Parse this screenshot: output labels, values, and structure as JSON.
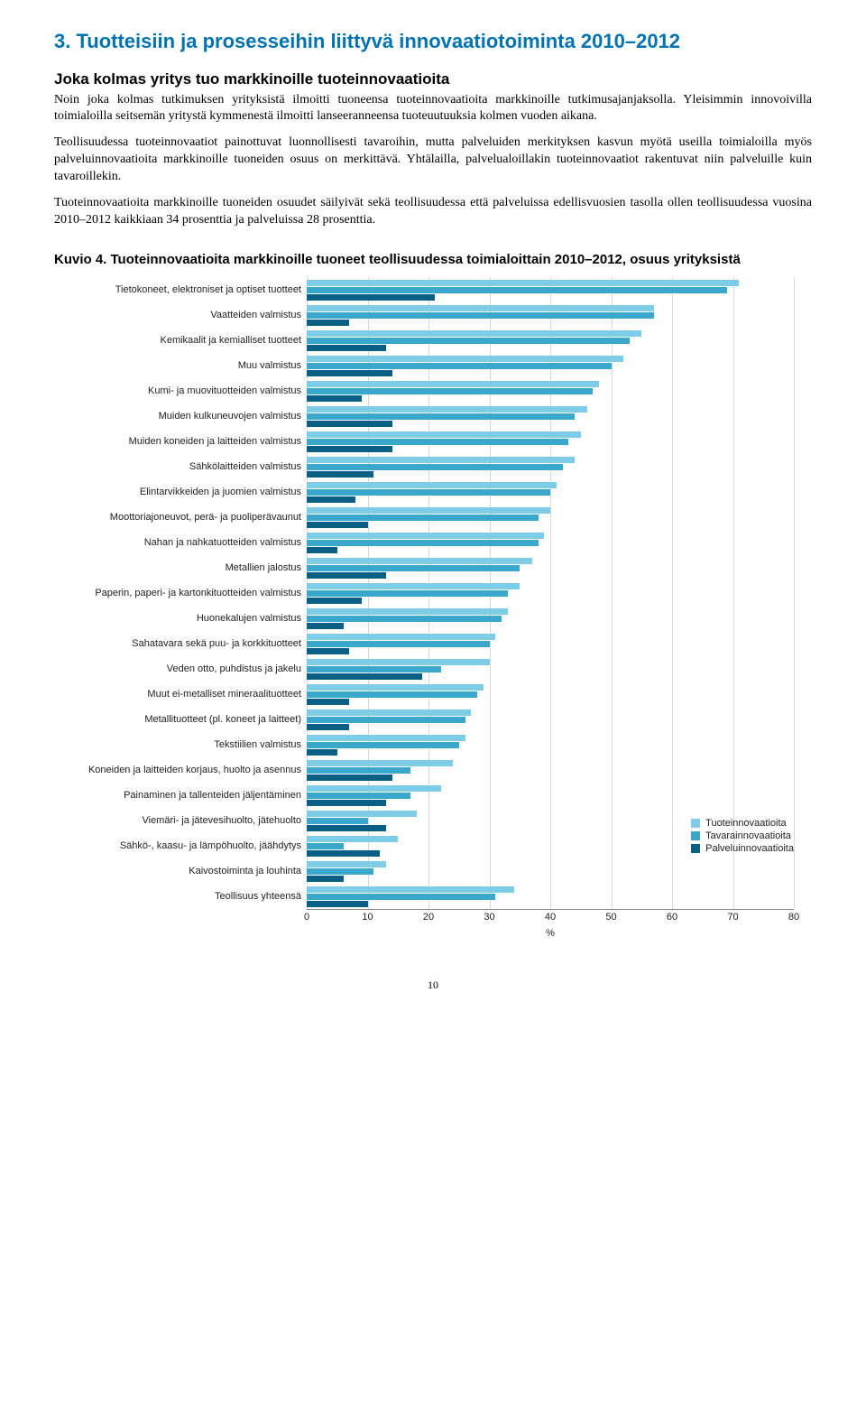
{
  "section_title": "3. Tuotteisiin ja prosesseihin liittyvä innovaatiotoiminta 2010–2012",
  "sub_title": "Joka kolmas yritys tuo markkinoille tuoteinnovaatioita",
  "paragraphs": [
    "Noin joka kolmas tutkimuksen yrityksistä ilmoitti tuoneensa tuoteinnovaatioita markkinoille tutkimusajanjaksolla. Yleisimmin innovoivilla toimialoilla seitsemän yritystä kymmenestä ilmoitti lanseeranneensa tuoteuutuuksia kolmen vuoden aikana.",
    "Teollisuudessa tuoteinnovaatiot painottuvat luonnollisesti tavaroihin, mutta palveluiden merkityksen kasvun myötä useilla toimialoilla myös palveluinnovaatioita markkinoille tuoneiden osuus on merkittävä. Yhtälailla, palvelualoillakin tuoteinnovaatiot rakentuvat niin palveluille kuin tavaroillekin.",
    "Tuoteinnovaatioita markkinoille tuoneiden osuudet säilyivät sekä teollisuudessa että palveluissa edellisvuosien tasolla ollen teollisuudessa vuosina 2010–2012 kaikkiaan 34 prosenttia ja palveluissa 28 prosenttia."
  ],
  "figure_title": "Kuvio 4. Tuoteinnovaatioita markkinoille tuoneet teollisuudessa toimialoittain 2010–2012, osuus yrityksistä",
  "chart": {
    "type": "bar",
    "x_max": 80,
    "x_tick_step": 10,
    "x_title": "%",
    "grid_color": "#d9d9d9",
    "background": "#ffffff",
    "label_fontsize": 11,
    "series": [
      {
        "name": "Tuoteinnovaatioita",
        "color": "#7dcce8"
      },
      {
        "name": "Tavarainnovaatioita",
        "color": "#3aa7cc"
      },
      {
        "name": "Palveluinnovaatioita",
        "color": "#0a5f87"
      }
    ],
    "categories": [
      {
        "label": "Tietokoneet, elektroniset ja optiset tuotteet",
        "values": [
          71,
          69,
          21
        ]
      },
      {
        "label": "Vaatteiden valmistus",
        "values": [
          57,
          57,
          7
        ]
      },
      {
        "label": "Kemikaalit ja kemialliset tuotteet",
        "values": [
          55,
          53,
          13
        ]
      },
      {
        "label": "Muu valmistus",
        "values": [
          52,
          50,
          14
        ]
      },
      {
        "label": "Kumi- ja muovituotteiden valmistus",
        "values": [
          48,
          47,
          9
        ]
      },
      {
        "label": "Muiden kulkuneuvojen valmistus",
        "values": [
          46,
          44,
          14
        ]
      },
      {
        "label": "Muiden koneiden ja laitteiden valmistus",
        "values": [
          45,
          43,
          14
        ]
      },
      {
        "label": "Sähkölaitteiden valmistus",
        "values": [
          44,
          42,
          11
        ]
      },
      {
        "label": "Elintarvikkeiden ja juomien valmistus",
        "values": [
          41,
          40,
          8
        ]
      },
      {
        "label": "Moottoriajoneuvot, perä- ja puoliperävaunut",
        "values": [
          40,
          38,
          10
        ]
      },
      {
        "label": "Nahan ja nahkatuotteiden valmistus",
        "values": [
          39,
          38,
          5
        ]
      },
      {
        "label": "Metallien jalostus",
        "values": [
          37,
          35,
          13
        ]
      },
      {
        "label": "Paperin, paperi- ja kartonkituotteiden valmistus",
        "values": [
          35,
          33,
          9
        ]
      },
      {
        "label": "Huonekalujen valmistus",
        "values": [
          33,
          32,
          6
        ]
      },
      {
        "label": "Sahatavara sekä puu- ja korkkituotteet",
        "values": [
          31,
          30,
          7
        ]
      },
      {
        "label": "Veden otto, puhdistus ja jakelu",
        "values": [
          30,
          22,
          19
        ]
      },
      {
        "label": "Muut ei-metalliset mineraalituotteet",
        "values": [
          29,
          28,
          7
        ]
      },
      {
        "label": "Metallituotteet (pl. koneet ja laitteet)",
        "values": [
          27,
          26,
          7
        ]
      },
      {
        "label": "Tekstiilien valmistus",
        "values": [
          26,
          25,
          5
        ]
      },
      {
        "label": "Koneiden ja laitteiden korjaus, huolto ja asennus",
        "values": [
          24,
          17,
          14
        ]
      },
      {
        "label": "Painaminen ja tallenteiden jäljentäminen",
        "values": [
          22,
          17,
          13
        ]
      },
      {
        "label": "Viemäri- ja jätevesihuolto, jätehuolto",
        "values": [
          18,
          10,
          13
        ]
      },
      {
        "label": "Sähkö-, kaasu- ja lämpöhuolto, jäähdytys",
        "values": [
          15,
          6,
          12
        ]
      },
      {
        "label": "Kaivostoiminta ja louhinta",
        "values": [
          13,
          11,
          6
        ]
      },
      {
        "label": "Teollisuus yhteensä",
        "values": [
          34,
          31,
          10
        ]
      }
    ]
  },
  "page_number": "10"
}
